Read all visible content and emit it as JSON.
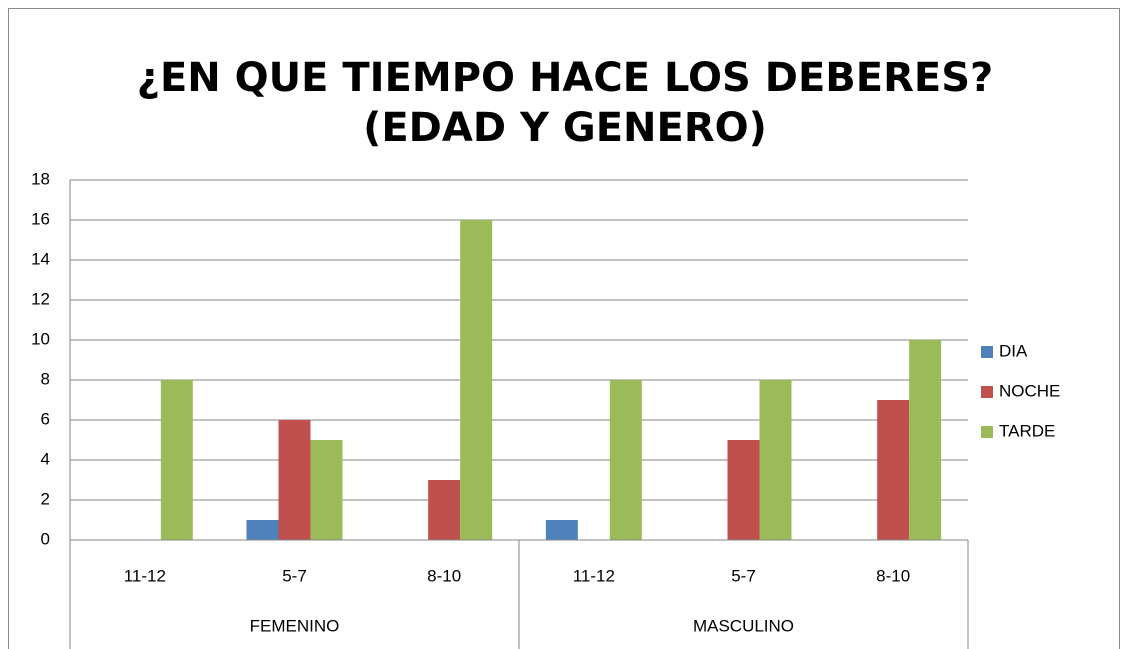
{
  "chart_data": {
    "type": "bar",
    "title": [
      "¿EN QUE TIEMPO HACE LOS DEBERES?",
      "(EDAD Y GENERO)"
    ],
    "categories": [
      "11-12",
      "5-7",
      "8-10",
      "11-12",
      "5-7",
      "8-10"
    ],
    "category_groups": [
      "FEMENINO",
      "FEMENINO",
      "FEMENINO",
      "MASCULINO",
      "MASCULINO",
      "MASCULINO"
    ],
    "series": [
      {
        "name": "DIA",
        "color": "#4f81bd",
        "values": [
          0,
          1,
          0,
          1,
          0,
          0
        ]
      },
      {
        "name": "NOCHE",
        "color": "#c0504d",
        "values": [
          0,
          6,
          3,
          0,
          5,
          7
        ]
      },
      {
        "name": "TARDE",
        "color": "#9bbb59",
        "values": [
          8,
          5,
          16,
          8,
          8,
          10
        ]
      }
    ],
    "ylim": [
      0,
      18
    ],
    "yticks": [
      0,
      2,
      4,
      6,
      8,
      10,
      12,
      14,
      16,
      18
    ],
    "grid": true,
    "legend": "right"
  }
}
